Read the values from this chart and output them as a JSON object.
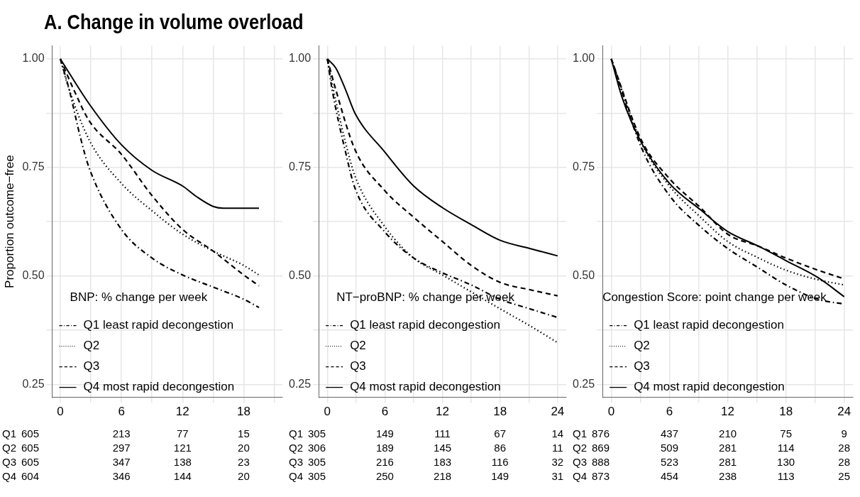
{
  "chart_data": [
    {
      "type": "line",
      "title": "A. Change in volume overload",
      "ylabel": "Proportion outcome−free",
      "legend_title": "BNP: % change per week",
      "legend": "bottom left",
      "grid": true,
      "marker": "none",
      "xlim": [
        -0.8,
        21.8
      ],
      "xticks": [
        0,
        {
          "value": 3,
          "label": null
        },
        6,
        {
          "value": 9,
          "label": null
        },
        12,
        {
          "value": 15,
          "label": null
        },
        18,
        {
          "value": 21,
          "label": null
        }
      ],
      "ylim": [
        0.22,
        1.03
      ],
      "yticks": [
        {
          "value": 0.25,
          "label": "0.25"
        },
        {
          "value": 0.375,
          "label": null
        },
        {
          "value": 0.5,
          "label": "0.50"
        },
        {
          "value": 0.625,
          "label": null
        },
        {
          "value": 0.75,
          "label": "0.75"
        },
        {
          "value": 0.875,
          "label": null
        },
        {
          "value": 1,
          "label": "1.00"
        }
      ],
      "series": [
        {
          "name": "Q1 least rapid decongestion",
          "color": "#000000",
          "line_style": "dashdot",
          "x": [
            0,
            0.86,
            1.96,
            2.84,
            6,
            9,
            12,
            15,
            18,
            19.5
          ],
          "values": [
            1.0,
            0.93,
            0.82,
            0.748,
            0.607,
            0.541,
            0.502,
            0.474,
            0.446,
            0.427
          ]
        },
        {
          "name": "Q2",
          "color": "#000000",
          "line_style": "dotted",
          "x": [
            0,
            0.64,
            2.84,
            6,
            9,
            12,
            15,
            18,
            19.5
          ],
          "values": [
            1.0,
            0.946,
            0.813,
            0.713,
            0.65,
            0.596,
            0.557,
            0.524,
            0.502
          ]
        },
        {
          "name": "Q3",
          "color": "#000000",
          "line_style": "dashed",
          "x": [
            0,
            1.3,
            2.84,
            6,
            9,
            12,
            15,
            18,
            19.5
          ],
          "values": [
            1.0,
            0.93,
            0.857,
            0.78,
            0.685,
            0.607,
            0.557,
            0.502,
            0.477
          ]
        },
        {
          "name": "Q4 most rapid decongestion",
          "color": "#000000",
          "line_style": "solid",
          "x": [
            0,
            2.84,
            6,
            9,
            12,
            13.4,
            15,
            16,
            19.5
          ],
          "values": [
            1.0,
            0.896,
            0.802,
            0.743,
            0.707,
            0.682,
            0.66,
            0.656,
            0.656
          ]
        }
      ],
      "annotations": [
        "Q1 605 213 77 15",
        "Q2 605 297 121 20",
        "Q3 605 347 138 23",
        "Q4 604 346 144 20"
      ]
    },
    {
      "type": "line",
      "legend_title": "NT−proBNP: % change per week",
      "legend": "bottom left",
      "grid": true,
      "marker": "none",
      "xlim": [
        -0.9,
        24.9
      ],
      "xticks": [
        0,
        {
          "value": 3,
          "label": null
        },
        6,
        {
          "value": 9,
          "label": null
        },
        12,
        {
          "value": 15,
          "label": null
        },
        18,
        {
          "value": 21,
          "label": null
        },
        24
      ],
      "ylim": [
        0.22,
        1.03
      ],
      "yticks": [
        {
          "value": 0.25,
          "label": "0.25"
        },
        {
          "value": 0.375,
          "label": null
        },
        {
          "value": 0.5,
          "label": "0.50"
        },
        {
          "value": 0.625,
          "label": null
        },
        {
          "value": 0.75,
          "label": "0.75"
        },
        {
          "value": 0.875,
          "label": null
        },
        {
          "value": 1,
          "label": "1.00"
        }
      ],
      "series": [
        {
          "name": "Q1 least rapid decongestion",
          "color": "#000000",
          "line_style": "dashdot",
          "x": [
            0,
            0.5,
            1.9,
            2.9,
            6,
            9,
            12,
            15,
            18,
            21.1,
            24
          ],
          "values": [
            1.0,
            0.929,
            0.785,
            0.701,
            0.601,
            0.541,
            0.507,
            0.479,
            0.446,
            0.424,
            0.404
          ]
        },
        {
          "name": "Q2",
          "color": "#000000",
          "line_style": "dotted",
          "x": [
            0,
            0.63,
            1.9,
            2.9,
            6,
            9,
            12,
            15,
            18,
            21.1,
            24
          ],
          "values": [
            1.0,
            0.929,
            0.807,
            0.729,
            0.613,
            0.541,
            0.502,
            0.463,
            0.424,
            0.385,
            0.346
          ]
        },
        {
          "name": "Q3",
          "color": "#000000",
          "line_style": "dashed",
          "x": [
            0,
            0.88,
            2.9,
            6,
            9,
            12,
            15,
            18,
            21.1,
            24
          ],
          "values": [
            1.0,
            0.929,
            0.79,
            0.696,
            0.635,
            0.579,
            0.524,
            0.485,
            0.468,
            0.454
          ]
        },
        {
          "name": "Q4 most rapid decongestion",
          "color": "#000000",
          "line_style": "solid",
          "x": [
            0,
            0.88,
            1.9,
            2.9,
            6,
            9,
            12,
            15,
            18,
            21.1,
            24
          ],
          "values": [
            1.0,
            0.979,
            0.929,
            0.874,
            0.785,
            0.707,
            0.657,
            0.618,
            0.582,
            0.563,
            0.546
          ]
        }
      ],
      "annotations": [
        "Q1 305 149 111 67 14",
        "Q2 306 189 145 86 11",
        "Q3 305 216 183 116 32",
        "Q4 305 250 218 149 31"
      ]
    },
    {
      "type": "line",
      "legend_title": "Congestion Score: point change per week",
      "legend": "bottom left",
      "grid": true,
      "marker": "none",
      "xlim": [
        -0.9,
        24.9
      ],
      "xticks": [
        0,
        {
          "value": 3,
          "label": null
        },
        6,
        {
          "value": 9,
          "label": null
        },
        12,
        {
          "value": 15,
          "label": null
        },
        18,
        {
          "value": 21,
          "label": null
        },
        24
      ],
      "ylim": [
        0.22,
        1.03
      ],
      "yticks": [
        {
          "value": 0.25,
          "label": "0.25"
        },
        {
          "value": 0.375,
          "label": null
        },
        {
          "value": 0.5,
          "label": "0.50"
        },
        {
          "value": 0.625,
          "label": null
        },
        {
          "value": 0.75,
          "label": "0.75"
        },
        {
          "value": 0.875,
          "label": null
        },
        {
          "value": 1,
          "label": "1.00"
        }
      ],
      "series": [
        {
          "name": "Q1 least rapid decongestion",
          "color": "#000000",
          "line_style": "dashdot",
          "x": [
            0,
            3.1,
            6,
            9.2,
            12,
            15.2,
            18,
            21.3,
            24
          ],
          "values": [
            1.0,
            0.796,
            0.685,
            0.613,
            0.563,
            0.518,
            0.479,
            0.446,
            0.435
          ]
        },
        {
          "name": "Q2",
          "color": "#000000",
          "line_style": "dotted",
          "x": [
            0,
            3.1,
            6,
            9.2,
            12,
            15.2,
            18,
            21.3,
            24
          ],
          "values": [
            1.0,
            0.807,
            0.707,
            0.635,
            0.579,
            0.541,
            0.513,
            0.491,
            0.479
          ]
        },
        {
          "name": "Q3",
          "color": "#000000",
          "line_style": "dashed",
          "x": [
            0,
            3.1,
            6,
            9.2,
            12,
            15.2,
            18,
            21.3,
            24
          ],
          "values": [
            1.0,
            0.813,
            0.724,
            0.657,
            0.596,
            0.568,
            0.541,
            0.513,
            0.493
          ]
        },
        {
          "name": "Q4 most rapid decongestion",
          "color": "#000000",
          "line_style": "solid",
          "x": [
            0,
            1.09,
            3.1,
            6,
            9.2,
            12,
            15.2,
            18,
            21.3,
            24
          ],
          "values": [
            1.0,
            0.913,
            0.807,
            0.713,
            0.652,
            0.602,
            0.568,
            0.535,
            0.496,
            0.452
          ]
        }
      ],
      "annotations": [
        "Q1 876 437 210 75 9",
        "Q2 869 509 281 114 28",
        "Q3 888 523 281 130 28",
        "Q4 873 454 238 113 25"
      ]
    }
  ]
}
